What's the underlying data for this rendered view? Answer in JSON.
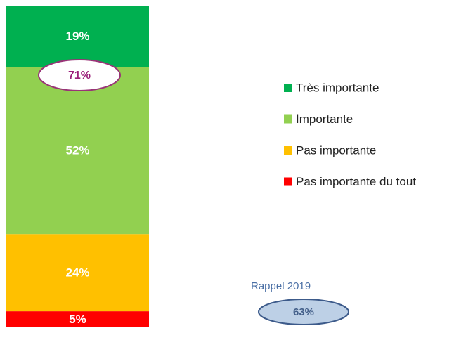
{
  "chart_data": {
    "type": "bar",
    "stacked": true,
    "categories": [
      null
    ],
    "ylim": [
      0,
      100
    ],
    "series": [
      {
        "name": "Très importante",
        "color": "#00b050",
        "values": [
          19
        ],
        "value_labels": [
          "19%"
        ]
      },
      {
        "name": "Importante",
        "color": "#92d050",
        "values": [
          52
        ],
        "value_labels": [
          "52%"
        ]
      },
      {
        "name": "Pas importante",
        "color": "#ffc000",
        "values": [
          24
        ],
        "value_labels": [
          "24%"
        ]
      },
      {
        "name": "Pas importante du tout",
        "color": "#ff0000",
        "values": [
          5
        ],
        "value_labels": [
          "5%"
        ]
      }
    ],
    "annotations": [
      {
        "text": "71%"
      },
      {
        "text": "Rappel 2019"
      },
      {
        "text": "63%"
      }
    ]
  }
}
